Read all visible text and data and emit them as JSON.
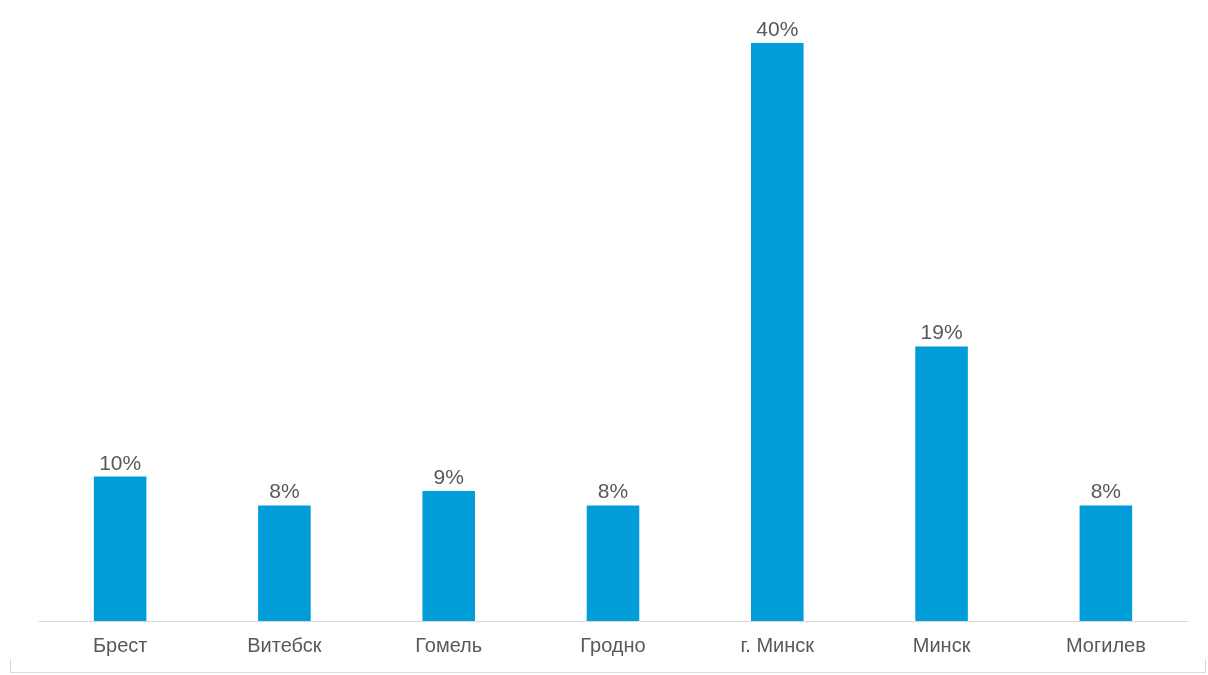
{
  "chart_data": {
    "type": "bar",
    "categories": [
      "Брест",
      "Витебск",
      "Гомель",
      "Гродно",
      "г. Минск",
      "Минск",
      "Могилев"
    ],
    "values": [
      10,
      8,
      9,
      8,
      40,
      19,
      8
    ],
    "value_labels": [
      "10%",
      "8%",
      "9%",
      "8%",
      "40%",
      "19%",
      "8%"
    ],
    "color": "#009dd9",
    "grid": false
  }
}
